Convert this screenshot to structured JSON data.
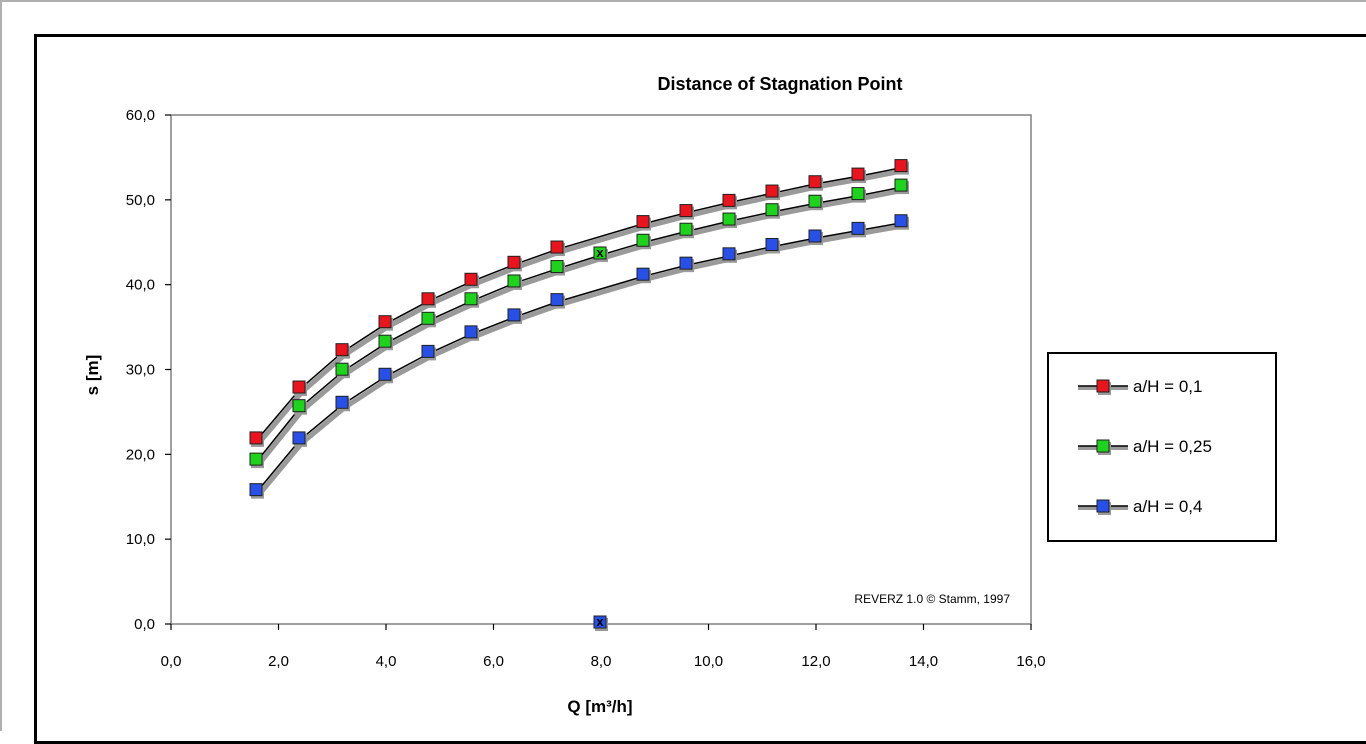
{
  "chart_data": {
    "type": "line",
    "title": "Distance of Stagnation Point",
    "xlabel": "Q  [m³/h]",
    "ylabel": "s  [m]",
    "xlim": [
      0,
      16
    ],
    "ylim": [
      0,
      60
    ],
    "xticks": [
      0,
      2,
      4,
      6,
      8,
      10,
      12,
      14,
      16
    ],
    "xtick_labels": [
      "0,0",
      "2,0",
      "4,0",
      "6,0",
      "8,0",
      "10,0",
      "12,0",
      "14,0",
      "16,0"
    ],
    "yticks": [
      0,
      10,
      20,
      30,
      40,
      50,
      60
    ],
    "ytick_labels": [
      "0,0",
      "10,0",
      "20,0",
      "30,0",
      "40,0",
      "50,0",
      "60,0"
    ],
    "grid": false,
    "legend_position": "right",
    "annotation": "REVERZ 1.0 © Stamm, 1997",
    "x": [
      1.6,
      2.4,
      3.2,
      4.0,
      4.8,
      5.6,
      6.4,
      7.2,
      8.8,
      9.6,
      10.4,
      11.2,
      12.0,
      12.8,
      13.6
    ],
    "series": [
      {
        "name": "a/H = 0,1",
        "color": "#e8141e",
        "x": [
          1.6,
          2.4,
          3.2,
          4.0,
          4.8,
          5.6,
          6.4,
          7.2,
          8.8,
          9.6,
          10.4,
          11.2,
          12.0,
          12.8,
          13.6
        ],
        "values": [
          21.7,
          27.7,
          32.1,
          35.4,
          38.1,
          40.4,
          42.4,
          44.2,
          47.2,
          48.5,
          49.7,
          50.8,
          51.9,
          52.8,
          53.8
        ]
      },
      {
        "name": "a/H = 0,25",
        "color": "#1ed21e",
        "x": [
          1.6,
          2.4,
          3.2,
          4.0,
          4.8,
          5.6,
          6.4,
          7.2,
          8.0,
          8.8,
          9.6,
          10.4,
          11.2,
          12.0,
          12.8,
          13.6
        ],
        "values": [
          19.2,
          25.5,
          29.8,
          33.1,
          35.8,
          38.1,
          40.2,
          41.9,
          43.5,
          45.0,
          46.3,
          47.5,
          48.6,
          49.6,
          50.5,
          51.5
        ]
      },
      {
        "name": "a/H = 0,4",
        "color": "#2850e6",
        "x": [
          1.6,
          2.4,
          3.2,
          4.0,
          4.8,
          5.6,
          6.4,
          7.2,
          8.8,
          9.6,
          10.4,
          11.2,
          12.0,
          12.8,
          13.6
        ],
        "values": [
          15.6,
          21.7,
          25.9,
          29.2,
          31.9,
          34.2,
          36.2,
          38.0,
          41.0,
          42.3,
          43.4,
          44.5,
          45.5,
          46.4,
          47.3
        ]
      }
    ],
    "markers": [
      {
        "series": "a/H = 0,25",
        "x": 8.0,
        "y": 43.5,
        "glyph": "x",
        "color": "#1ed21e"
      },
      {
        "series": "a/H = 0,4",
        "x": 8.0,
        "y": 0.0,
        "glyph": "x",
        "color": "#2850e6"
      }
    ]
  }
}
